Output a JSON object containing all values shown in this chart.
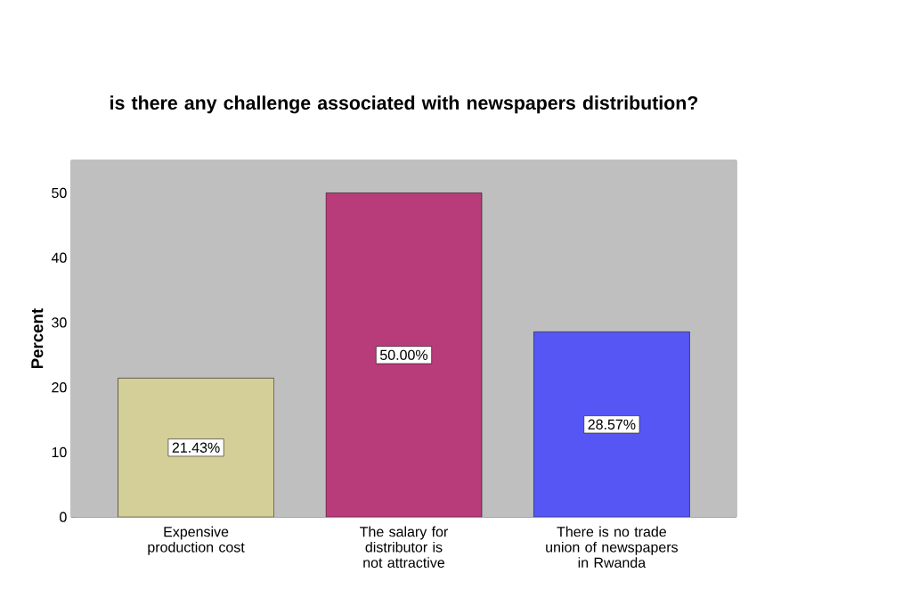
{
  "chart_data": {
    "type": "bar",
    "title": "is there any challenge associated with newspapers distribution?",
    "ylabel": "Percent",
    "categories": [
      "Expensive production cost",
      "The salary for distributor is not attractive",
      "There is no trade union of newspapers in Rwanda"
    ],
    "values": [
      21.43,
      50.0,
      28.57
    ],
    "colors": [
      "#d4cf99",
      "#b83c7a",
      "#5656f5"
    ],
    "value_labels": [
      "21.43%",
      "50.00%",
      "28.57%"
    ],
    "ylim": [
      0,
      55
    ],
    "yticks": [
      0,
      10,
      20,
      30,
      40,
      50
    ]
  }
}
